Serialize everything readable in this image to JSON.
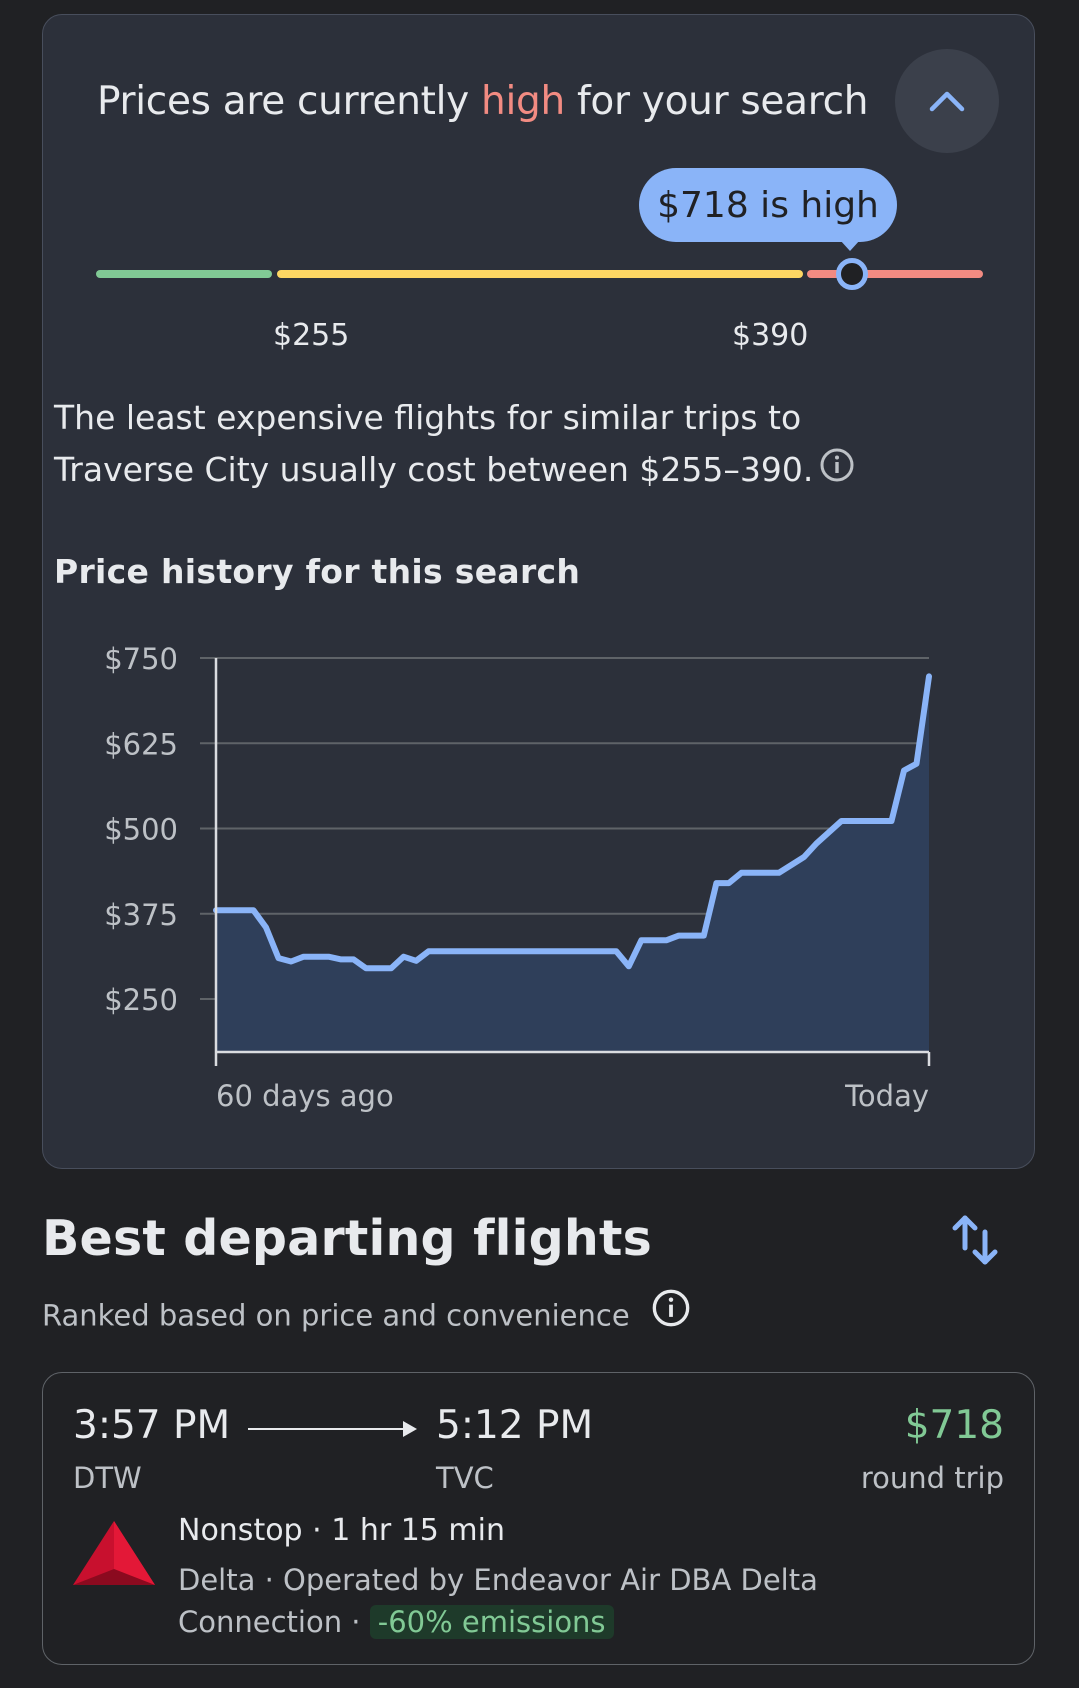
{
  "insight": {
    "headline_prefix": "Prices are currently",
    "headline_level": "high",
    "headline_suffix": "for your search",
    "tooltip": "$718 is high",
    "range_low_label": "$255",
    "range_high_label": "$390",
    "description": "The least expensive flights for similar trips to Traverse City usually cost between $255–390.",
    "colors": {
      "low": "#81c995",
      "typical": "#fdd663",
      "high": "#f28b82",
      "accent": "#8ab4f8"
    }
  },
  "history": {
    "title": "Price history for this search",
    "x_start_label": "60 days ago",
    "x_end_label": "Today"
  },
  "chart_data": {
    "type": "area",
    "title": "Price history for this search",
    "xlabel": "",
    "ylabel": "",
    "x_tick_labels": [
      "60 days ago",
      "Today"
    ],
    "y_ticks": [
      750,
      625,
      500,
      375,
      250
    ],
    "y_tick_labels": [
      "$750",
      "$625",
      "$500",
      "$375",
      "$250"
    ],
    "ylim": [
      175,
      750
    ],
    "grid": true,
    "series": [
      {
        "x": [
          0,
          3,
          4,
          5,
          6,
          7,
          8,
          9,
          10,
          11,
          12,
          13,
          14,
          15,
          16,
          17,
          18,
          19,
          21,
          22,
          32,
          33,
          34,
          36,
          37,
          39,
          40,
          41,
          42,
          44,
          45,
          47,
          48,
          50,
          51,
          52,
          54,
          55,
          56,
          57
        ],
        "values": [
          380,
          380,
          355,
          310,
          305,
          312,
          312,
          312,
          308,
          308,
          295,
          295,
          295,
          312,
          306,
          320,
          320,
          320,
          320,
          320,
          320,
          298,
          336,
          336,
          343,
          343,
          420,
          420,
          435,
          435,
          435,
          458,
          478,
          511,
          511,
          511,
          511,
          585,
          595,
          723
        ]
      }
    ]
  },
  "best": {
    "title": "Best departing flights",
    "subtitle": "Ranked based on price and convenience"
  },
  "flight": {
    "depart_time": "3:57 PM",
    "arrive_time": "5:12 PM",
    "depart_code": "DTW",
    "arrive_code": "TVC",
    "price": "$718",
    "price_note": "round trip",
    "stops": "Nonstop · 1 hr 15 min",
    "airline_line": "Delta · Operated by Endeavor Air DBA Delta Connection ·",
    "emissions": "-60% emissions"
  }
}
